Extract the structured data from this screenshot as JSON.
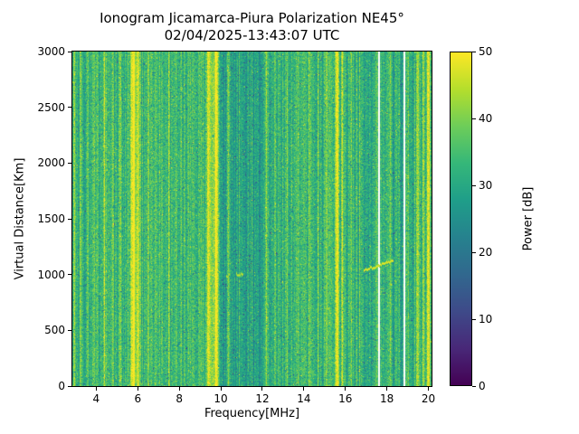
{
  "chart_data": {
    "type": "heatmap",
    "title": "Ionogram Jicamarca-Piura Polarization NE45°",
    "subtitle": "02/04/2025-13:43:07 UTC",
    "xlabel": "Frequency[MHz]",
    "ylabel": "Virtual Distance[Km]",
    "xlim": [
      2.85,
      20.15
    ],
    "ylim": [
      0,
      3000
    ],
    "xticks": [
      4,
      6,
      8,
      10,
      12,
      14,
      16,
      18,
      20
    ],
    "yticks": [
      0,
      500,
      1000,
      1500,
      2000,
      2500,
      3000
    ],
    "grid": false,
    "colorbar": {
      "label": "Power [dB]",
      "min": 0,
      "max": 50,
      "ticks": [
        0,
        10,
        20,
        30,
        40,
        50
      ],
      "colormap": "viridis",
      "stops": [
        "#440154",
        "#482878",
        "#3e4a89",
        "#31688e",
        "#26828e",
        "#1f9e89",
        "#35b779",
        "#6dcd59",
        "#b4de2c",
        "#fde725"
      ]
    },
    "background_power_db": {
      "mean": 33,
      "spread": 5
    },
    "quiet_bands": [
      {
        "from": 10.0,
        "to": 12.1,
        "delta": -4
      },
      {
        "from": 16.8,
        "to": 19.3,
        "delta": -3
      }
    ],
    "rfi_stripes": [
      {
        "freq": 2.95,
        "width": 0.05,
        "boost": 9
      },
      {
        "freq": 3.25,
        "width": 0.04,
        "boost": 7
      },
      {
        "freq": 3.6,
        "width": 0.05,
        "boost": 8
      },
      {
        "freq": 3.9,
        "width": 0.04,
        "boost": 7
      },
      {
        "freq": 4.4,
        "width": 0.05,
        "boost": 9
      },
      {
        "freq": 4.8,
        "width": 0.04,
        "boost": 7
      },
      {
        "freq": 5.15,
        "width": 0.04,
        "boost": 8
      },
      {
        "freq": 5.8,
        "width": 0.18,
        "boost": 16
      },
      {
        "freq": 6.05,
        "width": 0.07,
        "boost": 11
      },
      {
        "freq": 6.5,
        "width": 0.04,
        "boost": 8
      },
      {
        "freq": 6.9,
        "width": 0.04,
        "boost": 7
      },
      {
        "freq": 7.5,
        "width": 0.05,
        "boost": 9
      },
      {
        "freq": 8.05,
        "width": 0.04,
        "boost": 7
      },
      {
        "freq": 8.45,
        "width": 0.03,
        "boost": 6
      },
      {
        "freq": 9.45,
        "width": 0.15,
        "boost": 16
      },
      {
        "freq": 9.78,
        "width": 0.12,
        "boost": 16
      },
      {
        "freq": 10.35,
        "width": 0.05,
        "boost": 10
      },
      {
        "freq": 10.9,
        "width": 0.03,
        "boost": 5
      },
      {
        "freq": 11.5,
        "width": 0.03,
        "boost": 5
      },
      {
        "freq": 12.2,
        "width": 0.05,
        "boost": 9
      },
      {
        "freq": 12.6,
        "width": 0.03,
        "boost": 6
      },
      {
        "freq": 13.2,
        "width": 0.04,
        "boost": 8
      },
      {
        "freq": 13.7,
        "width": 0.03,
        "boost": 6
      },
      {
        "freq": 14.3,
        "width": 0.05,
        "boost": 8
      },
      {
        "freq": 14.7,
        "width": 0.03,
        "boost": 6
      },
      {
        "freq": 15.1,
        "width": 0.03,
        "boost": 6
      },
      {
        "freq": 15.6,
        "width": 0.09,
        "boost": 14
      },
      {
        "freq": 15.85,
        "width": 0.05,
        "boost": 9
      },
      {
        "freq": 16.3,
        "width": 0.04,
        "boost": 8
      },
      {
        "freq": 16.7,
        "width": 0.03,
        "boost": 6
      },
      {
        "freq": 17.15,
        "width": 0.03,
        "boost": 6
      },
      {
        "freq": 17.5,
        "width": 0.06,
        "boost": 12
      },
      {
        "freq": 18.2,
        "width": 0.05,
        "boost": 9
      },
      {
        "freq": 18.6,
        "width": 0.04,
        "boost": 8
      },
      {
        "freq": 19.0,
        "width": 0.05,
        "boost": 10
      },
      {
        "freq": 19.5,
        "width": 0.08,
        "boost": 14
      },
      {
        "freq": 19.75,
        "width": 0.04,
        "boost": 9
      },
      {
        "freq": 20.0,
        "width": 0.1,
        "boost": 15
      }
    ],
    "gaps": [
      17.62,
      18.85
    ],
    "echo_traces": [
      {
        "freq_start": 16.9,
        "freq_end": 18.6,
        "alt_start_km": 1040,
        "alt_end_km": 1150,
        "power_db": 49,
        "gap_fraction": 0.35
      },
      {
        "freq_start": 10.25,
        "freq_end": 11.05,
        "alt_start_km": 990,
        "alt_end_km": 1010,
        "power_db": 46,
        "gap_fraction": 0.5
      }
    ],
    "seed": 7
  }
}
